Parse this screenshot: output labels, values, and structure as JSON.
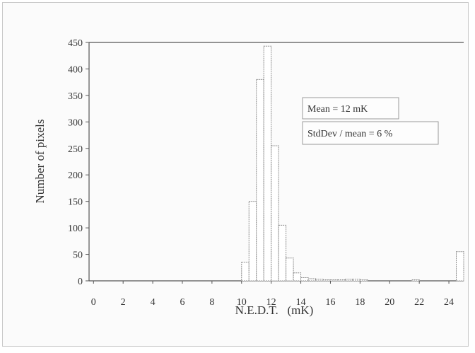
{
  "chart_data": {
    "type": "bar",
    "title": "",
    "xlabel": "N.E.D.T.   (mK)",
    "ylabel": "Number of pixels",
    "xlim": [
      -0.3,
      25
    ],
    "ylim": [
      0,
      450
    ],
    "x_ticks": [
      0,
      2,
      4,
      6,
      8,
      10,
      12,
      14,
      16,
      18,
      20,
      22,
      24
    ],
    "y_ticks": [
      0,
      50,
      100,
      150,
      200,
      250,
      300,
      350,
      400,
      450
    ],
    "bin_width": 0.5,
    "bins": [
      {
        "x": 10.25,
        "value": 35
      },
      {
        "x": 10.75,
        "value": 150
      },
      {
        "x": 11.25,
        "value": 380
      },
      {
        "x": 11.75,
        "value": 443
      },
      {
        "x": 12.25,
        "value": 255
      },
      {
        "x": 12.75,
        "value": 105
      },
      {
        "x": 13.25,
        "value": 43
      },
      {
        "x": 13.75,
        "value": 15
      },
      {
        "x": 14.25,
        "value": 6
      },
      {
        "x": 14.75,
        "value": 4
      },
      {
        "x": 15.25,
        "value": 3
      },
      {
        "x": 15.75,
        "value": 2
      },
      {
        "x": 16.25,
        "value": 2
      },
      {
        "x": 16.75,
        "value": 2
      },
      {
        "x": 17.25,
        "value": 3
      },
      {
        "x": 17.75,
        "value": 3
      },
      {
        "x": 18.25,
        "value": 2
      },
      {
        "x": 21.75,
        "value": 2
      },
      {
        "x": 24.75,
        "value": 55
      }
    ],
    "annotations": [
      "Mean = 12 mK",
      "StdDev / mean = 6 %"
    ],
    "grid": false,
    "top_border_line": true
  },
  "colors": {
    "bar_fill": "#ffffff",
    "bar_stroke": "#8a8a8a",
    "axis": "#555555",
    "text": "#333333"
  }
}
